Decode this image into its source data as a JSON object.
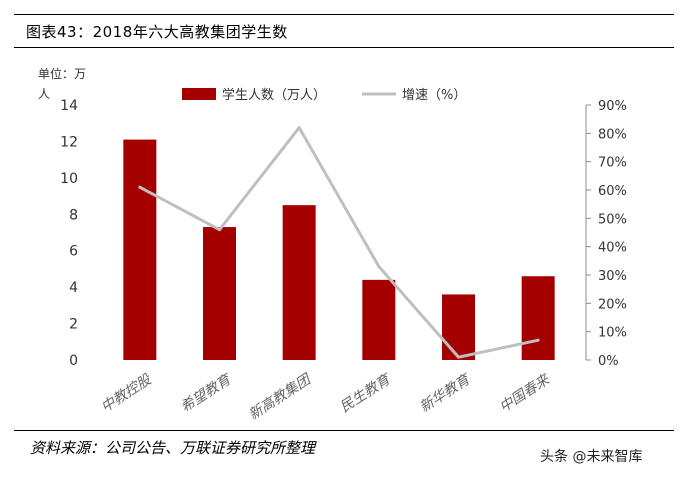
{
  "header": {
    "title": "图表43：2018年六大高教集团学生数"
  },
  "footer": {
    "source": "资料来源：公司公告、万联证券研究所整理",
    "watermark": "头条 @未来智库"
  },
  "chart_data": {
    "type": "bar",
    "unit_label": "单位：万人",
    "categories": [
      "中教控股",
      "希望教育",
      "新高教集团",
      "民生教育",
      "新华教育",
      "中国春来"
    ],
    "series": [
      {
        "name": "学生人数（万人）",
        "type": "bar",
        "axis": "left",
        "values": [
          12.1,
          7.3,
          8.5,
          4.4,
          3.6,
          4.6
        ],
        "color": "#a50000"
      },
      {
        "name": "增速（%）",
        "type": "line",
        "axis": "right",
        "values": [
          61,
          46,
          82,
          33,
          1,
          7
        ],
        "color": "#bfbfbf"
      }
    ],
    "y_left": {
      "min": 0,
      "max": 14,
      "ticks": [
        "0",
        "2",
        "4",
        "6",
        "8",
        "10",
        "12",
        "14"
      ]
    },
    "y_right": {
      "min": 0,
      "max": 90,
      "ticks": [
        "0%",
        "10%",
        "20%",
        "30%",
        "40%",
        "50%",
        "60%",
        "70%",
        "80%",
        "90%"
      ]
    },
    "legend_position": "top-center",
    "grid": false
  }
}
